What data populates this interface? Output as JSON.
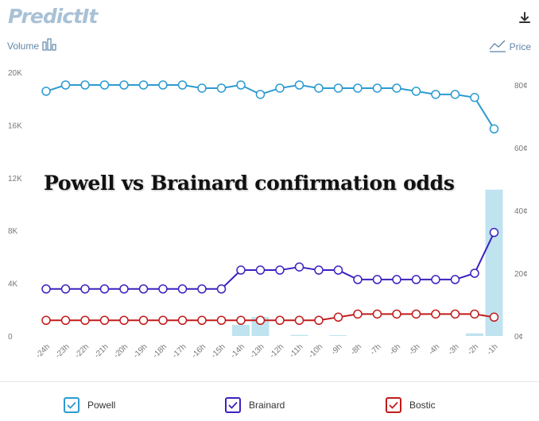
{
  "brand": "PredictIt",
  "left_axis_title": "Volume",
  "right_axis_title": "Price",
  "overlay_title": "Powell vs Brainard confirmation odds",
  "icons": {
    "download": "download-icon",
    "volume": "bar-chart-icon",
    "price": "line-chart-icon",
    "check": "checkmark-icon"
  },
  "chart_data": {
    "type": "line",
    "title": "Powell vs Brainard confirmation odds",
    "x_label": "",
    "categories": [
      "-24h",
      "-23h",
      "-22h",
      "-21h",
      "-20h",
      "-19h",
      "-18h",
      "-17h",
      "-16h",
      "-15h",
      "-14h",
      "-13h",
      "-12h",
      "-11h",
      "-10h",
      "-9h",
      "-8h",
      "-7h",
      "-6h",
      "-5h",
      "-4h",
      "-3h",
      "-2h",
      "-1h"
    ],
    "left_axis": {
      "label": "Volume",
      "min": 0,
      "max": 20000,
      "ticks": [
        "0",
        "4K",
        "8K",
        "12K",
        "16K",
        "20K"
      ]
    },
    "right_axis": {
      "label": "Price",
      "min": 0,
      "max": 80,
      "ticks": [
        "0¢",
        "20¢",
        "40¢",
        "60¢",
        "80¢"
      ]
    },
    "series": [
      {
        "name": "Powell",
        "color": "#2b9bd1",
        "axis": "right",
        "values": [
          78,
          80,
          80,
          80,
          80,
          80,
          80,
          80,
          79,
          79,
          80,
          77,
          79,
          80,
          79,
          79,
          79,
          79,
          79,
          78,
          77,
          77,
          76,
          66
        ]
      },
      {
        "name": "Brainard",
        "color": "#3a22c0",
        "axis": "right",
        "values": [
          15,
          15,
          15,
          15,
          15,
          15,
          15,
          15,
          15,
          15,
          21,
          21,
          21,
          22,
          21,
          21,
          18,
          18,
          18,
          18,
          18,
          18,
          20,
          33
        ]
      },
      {
        "name": "Bostic",
        "color": "#c21b1b",
        "axis": "right",
        "values": [
          5,
          5,
          5,
          5,
          5,
          5,
          5,
          5,
          5,
          5,
          5,
          5,
          5,
          5,
          5,
          6,
          7,
          7,
          7,
          7,
          7,
          7,
          7,
          6
        ]
      }
    ],
    "volume": {
      "axis": "left",
      "color": "#bfe3ef",
      "values": [
        0,
        0,
        0,
        0,
        0,
        0,
        0,
        0,
        0,
        0,
        850,
        1450,
        0,
        80,
        0,
        60,
        0,
        0,
        0,
        0,
        0,
        0,
        200,
        11100
      ]
    },
    "grid": false,
    "legend_position": "bottom"
  },
  "legend": [
    {
      "label": "Powell",
      "color": "#2b9bd1"
    },
    {
      "label": "Brainard",
      "color": "#3a22c0"
    },
    {
      "label": "Bostic",
      "color": "#c21b1b"
    }
  ]
}
